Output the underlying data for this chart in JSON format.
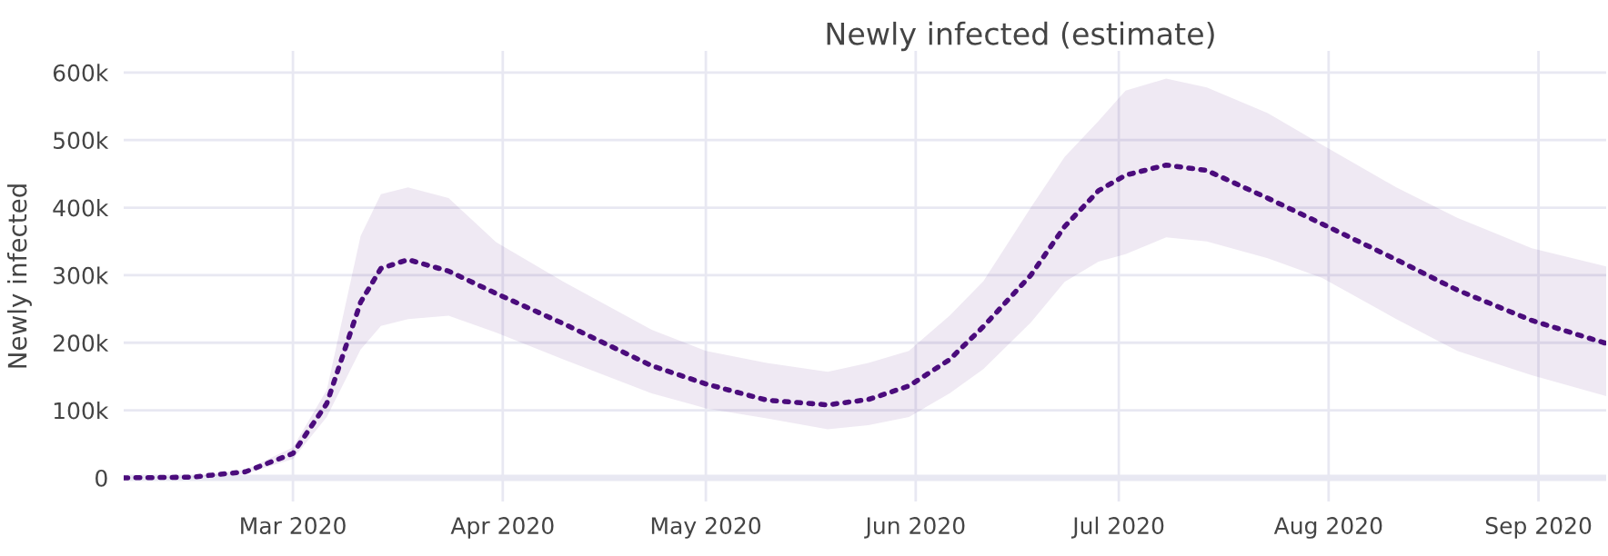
{
  "chart_data": {
    "type": "line",
    "title": "Newly infected (estimate)",
    "ylabel": "Newly infected",
    "x": [
      "2020-02-05",
      "2020-02-15",
      "2020-02-23",
      "2020-03-01",
      "2020-03-06",
      "2020-03-11",
      "2020-03-14",
      "2020-03-18",
      "2020-03-24",
      "2020-03-31",
      "2020-04-10",
      "2020-04-23",
      "2020-05-01",
      "2020-05-10",
      "2020-05-19",
      "2020-05-25",
      "2020-05-31",
      "2020-06-06",
      "2020-06-11",
      "2020-06-18",
      "2020-06-23",
      "2020-06-28",
      "2020-07-02",
      "2020-07-08",
      "2020-07-14",
      "2020-07-23",
      "2020-07-31",
      "2020-08-11",
      "2020-08-20",
      "2020-08-31",
      "2020-09-11"
    ],
    "series": [
      {
        "color": "#4b0c7c",
        "line_style": "dotted",
        "values": [
          0,
          1000,
          9000,
          36000,
          110000,
          260000,
          310000,
          323000,
          306000,
          273000,
          228000,
          166000,
          139000,
          115000,
          108000,
          116000,
          136000,
          175000,
          224000,
          300000,
          372000,
          425000,
          448000,
          463000,
          455000,
          414000,
          376000,
          323000,
          278000,
          233000,
          199000
        ],
        "lower": [
          0,
          500,
          6000,
          28000,
          90000,
          190000,
          225000,
          235000,
          240000,
          215000,
          175000,
          125000,
          103000,
          88000,
          72000,
          78000,
          90000,
          125000,
          161000,
          230000,
          290000,
          320000,
          331000,
          356000,
          350000,
          325000,
          296000,
          235000,
          188000,
          152000,
          121000
        ],
        "upper": [
          0,
          2000,
          12000,
          45000,
          130000,
          358000,
          420000,
          430000,
          414000,
          349000,
          290000,
          219000,
          188000,
          170000,
          157000,
          170000,
          188000,
          240000,
          291000,
          400000,
          475000,
          528000,
          573000,
          591000,
          578000,
          540000,
          493000,
          430000,
          385000,
          340000,
          313000
        ]
      }
    ],
    "xlim": [
      "2020-02-05",
      "2020-09-11"
    ],
    "xticks": [
      {
        "value": "2020-03-01",
        "label": "Mar 2020"
      },
      {
        "value": "2020-04-01",
        "label": "Apr 2020"
      },
      {
        "value": "2020-05-01",
        "label": "May 2020"
      },
      {
        "value": "2020-06-01",
        "label": "Jun 2020"
      },
      {
        "value": "2020-07-01",
        "label": "Jul 2020"
      },
      {
        "value": "2020-08-01",
        "label": "Aug 2020"
      },
      {
        "value": "2020-09-01",
        "label": "Sep 2020"
      }
    ],
    "ylim": [
      -35000,
      632000
    ],
    "yticks": [
      0,
      {
        "value": 100000,
        "label": "100k"
      },
      {
        "value": 200000,
        "label": "200k"
      },
      {
        "value": 300000,
        "label": "300k"
      },
      {
        "value": 400000,
        "label": "400k"
      },
      {
        "value": 500000,
        "label": "500k"
      },
      {
        "value": 600000,
        "label": "600k"
      }
    ],
    "grid": true,
    "legend": false,
    "marker": "none"
  }
}
